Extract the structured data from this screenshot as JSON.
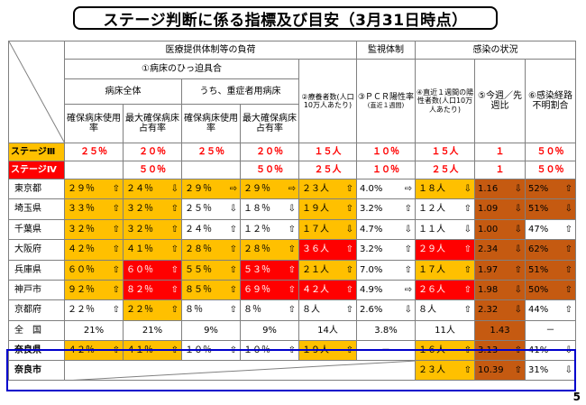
{
  "title": "ステージ判断に係る指標及び目安（3月31日時点）",
  "page_number": "5",
  "headers": {
    "medical": "医療提供体制等の負荷",
    "bed_pressure": "①病床のひっ迫具合",
    "all_beds": "病床全体",
    "severe_beds": "うち、重症者用病床",
    "secured_rate": "確保病床使用率",
    "max_secured_rate": "最大確保病床占有率",
    "patients": "②療養者数(人口10万人あたり)",
    "surveillance": "監視体制",
    "pcr": "③ＰＣＲ陽性率",
    "pcr_sub": "(直近１週間)",
    "infection": "感染の状況",
    "new_cases": "④直近１週間の陽性者数(人口10万人あたり)",
    "week_ratio": "⑤今週／先週比",
    "unknown_route": "⑥感染経路不明割合"
  },
  "stages": [
    {
      "prefix": "ステージ",
      "label": "Ⅲ",
      "cells": [
        "２５％",
        "２０％",
        "２５％",
        "２０％",
        "１５人",
        "１０％",
        "１５人",
        "１",
        "５０％"
      ]
    },
    {
      "prefix": "ステージ",
      "label": "Ⅳ",
      "cells": [
        "",
        "５０％",
        "",
        "５０％",
        "２５人",
        "１０％",
        "２５人",
        "１",
        "５０％"
      ]
    }
  ],
  "rows": [
    {
      "name": "東京都",
      "cells": [
        {
          "v": "２９％",
          "a": "⇧",
          "c": "yellow"
        },
        {
          "v": "２４％",
          "a": "⇩",
          "c": "yellow"
        },
        {
          "v": "２９％",
          "a": "⇨",
          "c": "yellow"
        },
        {
          "v": "２９％",
          "a": "⇨",
          "c": "yellow"
        },
        {
          "v": "２３人",
          "a": "⇧",
          "c": "yellow"
        },
        {
          "v": "4.0%",
          "a": "⇨",
          "c": ""
        },
        {
          "v": "１８人",
          "a": "⇩",
          "c": "yellow"
        },
        {
          "v": "1.16",
          "a": "⇩",
          "c": "brown"
        },
        {
          "v": "52%",
          "a": "⇧",
          "c": "brown"
        }
      ]
    },
    {
      "name": "埼玉県",
      "cells": [
        {
          "v": "３３％",
          "a": "⇧",
          "c": "yellow"
        },
        {
          "v": "３２％",
          "a": "⇧",
          "c": "yellow"
        },
        {
          "v": "２５％",
          "a": "⇩",
          "c": ""
        },
        {
          "v": "１８％",
          "a": "⇩",
          "c": ""
        },
        {
          "v": "１９人",
          "a": "⇧",
          "c": "yellow"
        },
        {
          "v": "3.2%",
          "a": "⇧",
          "c": ""
        },
        {
          "v": "１２人",
          "a": "⇧",
          "c": ""
        },
        {
          "v": "1.09",
          "a": "⇩",
          "c": "brown"
        },
        {
          "v": "51%",
          "a": "⇩",
          "c": "brown"
        }
      ]
    },
    {
      "name": "千葉県",
      "cells": [
        {
          "v": "３２％",
          "a": "⇧",
          "c": "yellow"
        },
        {
          "v": "３２％",
          "a": "⇧",
          "c": "yellow"
        },
        {
          "v": "２４％",
          "a": "⇧",
          "c": ""
        },
        {
          "v": "１２％",
          "a": "⇧",
          "c": ""
        },
        {
          "v": "１７人",
          "a": "⇩",
          "c": "yellow"
        },
        {
          "v": "4.7%",
          "a": "⇩",
          "c": ""
        },
        {
          "v": "１１人",
          "a": "⇩",
          "c": ""
        },
        {
          "v": "1.00",
          "a": "⇩",
          "c": "brown"
        },
        {
          "v": "47%",
          "a": "⇧",
          "c": ""
        }
      ]
    },
    {
      "name": "大阪府",
      "cells": [
        {
          "v": "４２％",
          "a": "⇧",
          "c": "yellow"
        },
        {
          "v": "４１％",
          "a": "⇧",
          "c": "yellow"
        },
        {
          "v": "２８％",
          "a": "⇧",
          "c": "yellow"
        },
        {
          "v": "２８％",
          "a": "⇧",
          "c": "yellow"
        },
        {
          "v": "３６人",
          "a": "⇧",
          "c": "red"
        },
        {
          "v": "3.2%",
          "a": "⇧",
          "c": ""
        },
        {
          "v": "２９人",
          "a": "⇧",
          "c": "red"
        },
        {
          "v": "2.34",
          "a": "⇩",
          "c": "brown"
        },
        {
          "v": "62%",
          "a": "⇧",
          "c": "brown"
        }
      ]
    },
    {
      "name": "兵庫県",
      "cells": [
        {
          "v": "６０％",
          "a": "⇧",
          "c": "yellow"
        },
        {
          "v": "６０％",
          "a": "⇧",
          "c": "red"
        },
        {
          "v": "５５％",
          "a": "⇧",
          "c": "yellow"
        },
        {
          "v": "５３％",
          "a": "⇧",
          "c": "red"
        },
        {
          "v": "２１人",
          "a": "⇧",
          "c": "yellow"
        },
        {
          "v": "7.0%",
          "a": "⇧",
          "c": ""
        },
        {
          "v": "１７人",
          "a": "⇧",
          "c": "yellow"
        },
        {
          "v": "1.97",
          "a": "⇧",
          "c": "brown"
        },
        {
          "v": "51%",
          "a": "⇧",
          "c": "brown"
        }
      ]
    },
    {
      "name": "神戸市",
      "cells": [
        {
          "v": "９２％",
          "a": "⇧",
          "c": "yellow"
        },
        {
          "v": "８２％",
          "a": "⇧",
          "c": "red"
        },
        {
          "v": "８５％",
          "a": "⇧",
          "c": "yellow"
        },
        {
          "v": "６９％",
          "a": "⇧",
          "c": "red"
        },
        {
          "v": "４２人",
          "a": "⇧",
          "c": "red"
        },
        {
          "v": "4.9%",
          "a": "⇨",
          "c": ""
        },
        {
          "v": "２６人",
          "a": "⇧",
          "c": "red"
        },
        {
          "v": "1.98",
          "a": "⇩",
          "c": "brown"
        },
        {
          "v": "50%",
          "a": "⇧",
          "c": "brown"
        }
      ]
    },
    {
      "name": "京都府",
      "cells": [
        {
          "v": "２２％",
          "a": "⇧",
          "c": ""
        },
        {
          "v": "２２％",
          "a": "⇧",
          "c": "yellow"
        },
        {
          "v": "８％",
          "a": "⇧",
          "c": ""
        },
        {
          "v": "８％",
          "a": "⇧",
          "c": ""
        },
        {
          "v": "８人",
          "a": "⇧",
          "c": ""
        },
        {
          "v": "2.6%",
          "a": "⇩",
          "c": ""
        },
        {
          "v": "８人",
          "a": "⇧",
          "c": ""
        },
        {
          "v": "2.32",
          "a": "⇩",
          "c": "brown"
        },
        {
          "v": "44%",
          "a": "⇧",
          "c": ""
        }
      ]
    },
    {
      "name": "全　国",
      "cells": [
        {
          "v": "21%",
          "a": "",
          "c": ""
        },
        {
          "v": "21%",
          "a": "",
          "c": ""
        },
        {
          "v": "9%",
          "a": "",
          "c": ""
        },
        {
          "v": "9%",
          "a": "",
          "c": ""
        },
        {
          "v": "14人",
          "a": "",
          "c": ""
        },
        {
          "v": "3.8%",
          "a": "",
          "c": ""
        },
        {
          "v": "11人",
          "a": "",
          "c": ""
        },
        {
          "v": "1.43",
          "a": "",
          "c": "brown"
        },
        {
          "v": "－",
          "a": "",
          "c": ""
        }
      ]
    }
  ],
  "nara_pref": {
    "name": "奈良県",
    "cells": [
      {
        "v": "４２％",
        "a": "⇧",
        "c": "yellow"
      },
      {
        "v": "４１％",
        "a": "⇧",
        "c": "yellow"
      },
      {
        "v": "１０％",
        "a": "⇧",
        "c": ""
      },
      {
        "v": "１０％",
        "a": "⇧",
        "c": ""
      },
      {
        "v": "１９人",
        "a": "⇧",
        "c": "yellow"
      },
      {
        "v": "－",
        "a": "",
        "c": ""
      },
      {
        "v": "１６人",
        "a": "⇧",
        "c": "yellow"
      },
      {
        "v": "3.13",
        "a": "⇧",
        "c": "brown"
      },
      {
        "v": "41%",
        "a": "⇩",
        "c": ""
      }
    ]
  },
  "nara_city": {
    "name": "奈良市",
    "cells": [
      {
        "v": "２３人",
        "a": "⇧",
        "c": "yellow"
      },
      {
        "v": "10.39",
        "a": "⇧",
        "c": "brown"
      },
      {
        "v": "31%",
        "a": "⇩",
        "c": ""
      }
    ]
  },
  "colors": {
    "yellow": "#ffc000",
    "red": "#ff0000",
    "brown": "#c55a11",
    "frame": "#0000cc"
  }
}
